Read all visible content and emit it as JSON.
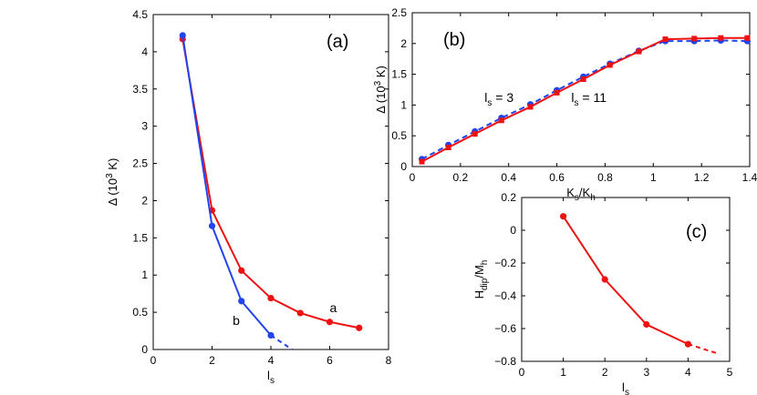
{
  "colors": {
    "red": "#ee1111",
    "blue": "#2244ee"
  },
  "chart_data": [
    {
      "id": "a",
      "type": "line",
      "panel_label": "(a)",
      "xlabel": "l",
      "xlabel_sub": "s",
      "ylabel": "Δ (10",
      "ylabel_sup": "3",
      "ylabel_tail": " K)",
      "xlim": [
        0,
        8
      ],
      "ylim": [
        0,
        4.5
      ],
      "xticks": [
        0,
        2,
        4,
        6,
        8
      ],
      "xtick_labels": [
        "0",
        "2",
        "4",
        "6",
        "8"
      ],
      "yticks": [
        0,
        0.5,
        1,
        1.5,
        2,
        2.5,
        3,
        3.5,
        4,
        4.5
      ],
      "ytick_labels": [
        "0",
        "0.5",
        "1",
        "1.5",
        "2",
        "2.5",
        "3",
        "3.5",
        "4",
        "4.5"
      ],
      "series": [
        {
          "name": "a",
          "color": "red",
          "marker": "circle",
          "x": [
            1,
            2,
            3,
            4,
            5,
            6,
            7
          ],
          "y": [
            4.17,
            1.87,
            1.06,
            0.69,
            0.49,
            0.37,
            0.29
          ]
        },
        {
          "name": "b",
          "color": "blue",
          "marker": "circle",
          "x": [
            1,
            2,
            3,
            4
          ],
          "y": [
            4.22,
            1.66,
            0.65,
            0.19
          ],
          "dashed_extension": {
            "x": [
              4,
              4.72
            ],
            "y": [
              0.19,
              0.0
            ]
          }
        }
      ],
      "annotations": [
        {
          "text": "a",
          "x": 6.0,
          "y": 0.5
        },
        {
          "text": "b",
          "x": 2.7,
          "y": 0.33
        }
      ]
    },
    {
      "id": "b",
      "type": "line",
      "panel_label": "(b)",
      "xlabel": "K",
      "xlabel_sub": "s",
      "xlabel_mid": "/K",
      "xlabel_sub2": "h",
      "ylabel": "Δ (10",
      "ylabel_sup": "3",
      "ylabel_tail": " K)",
      "xlim": [
        0,
        1.4
      ],
      "ylim": [
        0,
        2.5
      ],
      "xticks": [
        0,
        0.2,
        0.4,
        0.6,
        0.8,
        1,
        1.2,
        1.4
      ],
      "xtick_labels": [
        "0",
        "0.2",
        "0.4",
        "0.6",
        "0.8",
        "1",
        "1.2",
        "1.4"
      ],
      "yticks": [
        0,
        0.5,
        1,
        1.5,
        2,
        2.5
      ],
      "ytick_labels": [
        "0",
        "0.5",
        "1",
        "1.5",
        "2",
        "2.5"
      ],
      "series": [
        {
          "name": "l_s = 3",
          "color": "blue",
          "marker": "circle",
          "dashed": true,
          "x": [
            0.04,
            0.15,
            0.26,
            0.37,
            0.49,
            0.6,
            0.71,
            0.82,
            0.94,
            1.05,
            1.17,
            1.28,
            1.39
          ],
          "y": [
            0.12,
            0.35,
            0.57,
            0.79,
            1.01,
            1.24,
            1.46,
            1.67,
            1.88,
            2.04,
            2.04,
            2.05,
            2.04
          ]
        },
        {
          "name": "l_s = 11",
          "color": "red",
          "marker": "square",
          "dashed": false,
          "x": [
            0.04,
            0.15,
            0.26,
            0.37,
            0.49,
            0.6,
            0.71,
            0.82,
            0.94,
            1.05,
            1.17,
            1.28,
            1.39
          ],
          "y": [
            0.08,
            0.31,
            0.53,
            0.75,
            0.97,
            1.2,
            1.42,
            1.65,
            1.87,
            2.07,
            2.08,
            2.09,
            2.09
          ]
        }
      ],
      "annotations": [
        {
          "text": "l",
          "sub": "s",
          "tail": "= 3",
          "x": 0.3,
          "y": 1.05
        },
        {
          "text": "l",
          "sub": "s",
          "tail": "= 11",
          "x": 0.66,
          "y": 1.05
        }
      ]
    },
    {
      "id": "c",
      "type": "line",
      "panel_label": "(c)",
      "xlabel": "l",
      "xlabel_sub": "s",
      "ylabel": "H",
      "ylabel_sub": "dip",
      "ylabel_mid": "/M",
      "ylabel_sub2": "h",
      "xlim": [
        0,
        5
      ],
      "ylim": [
        -0.8,
        0.2
      ],
      "xticks": [
        0,
        1,
        2,
        3,
        4,
        5
      ],
      "xtick_labels": [
        "0",
        "1",
        "2",
        "3",
        "4",
        "5"
      ],
      "yticks": [
        -0.8,
        -0.6,
        -0.4,
        -0.2,
        0,
        0.2
      ],
      "ytick_labels": [
        "−0.8",
        "−0.6",
        "−0.4",
        "−0.2",
        "0",
        "0.2"
      ],
      "series": [
        {
          "name": "H_dip",
          "color": "red",
          "marker": "circle",
          "x": [
            1,
            2,
            3,
            4
          ],
          "y": [
            0.085,
            -0.3,
            -0.575,
            -0.695
          ],
          "dashed_extension": {
            "x": [
              4,
              4.75
            ],
            "y": [
              -0.695,
              -0.755
            ]
          }
        }
      ]
    }
  ]
}
